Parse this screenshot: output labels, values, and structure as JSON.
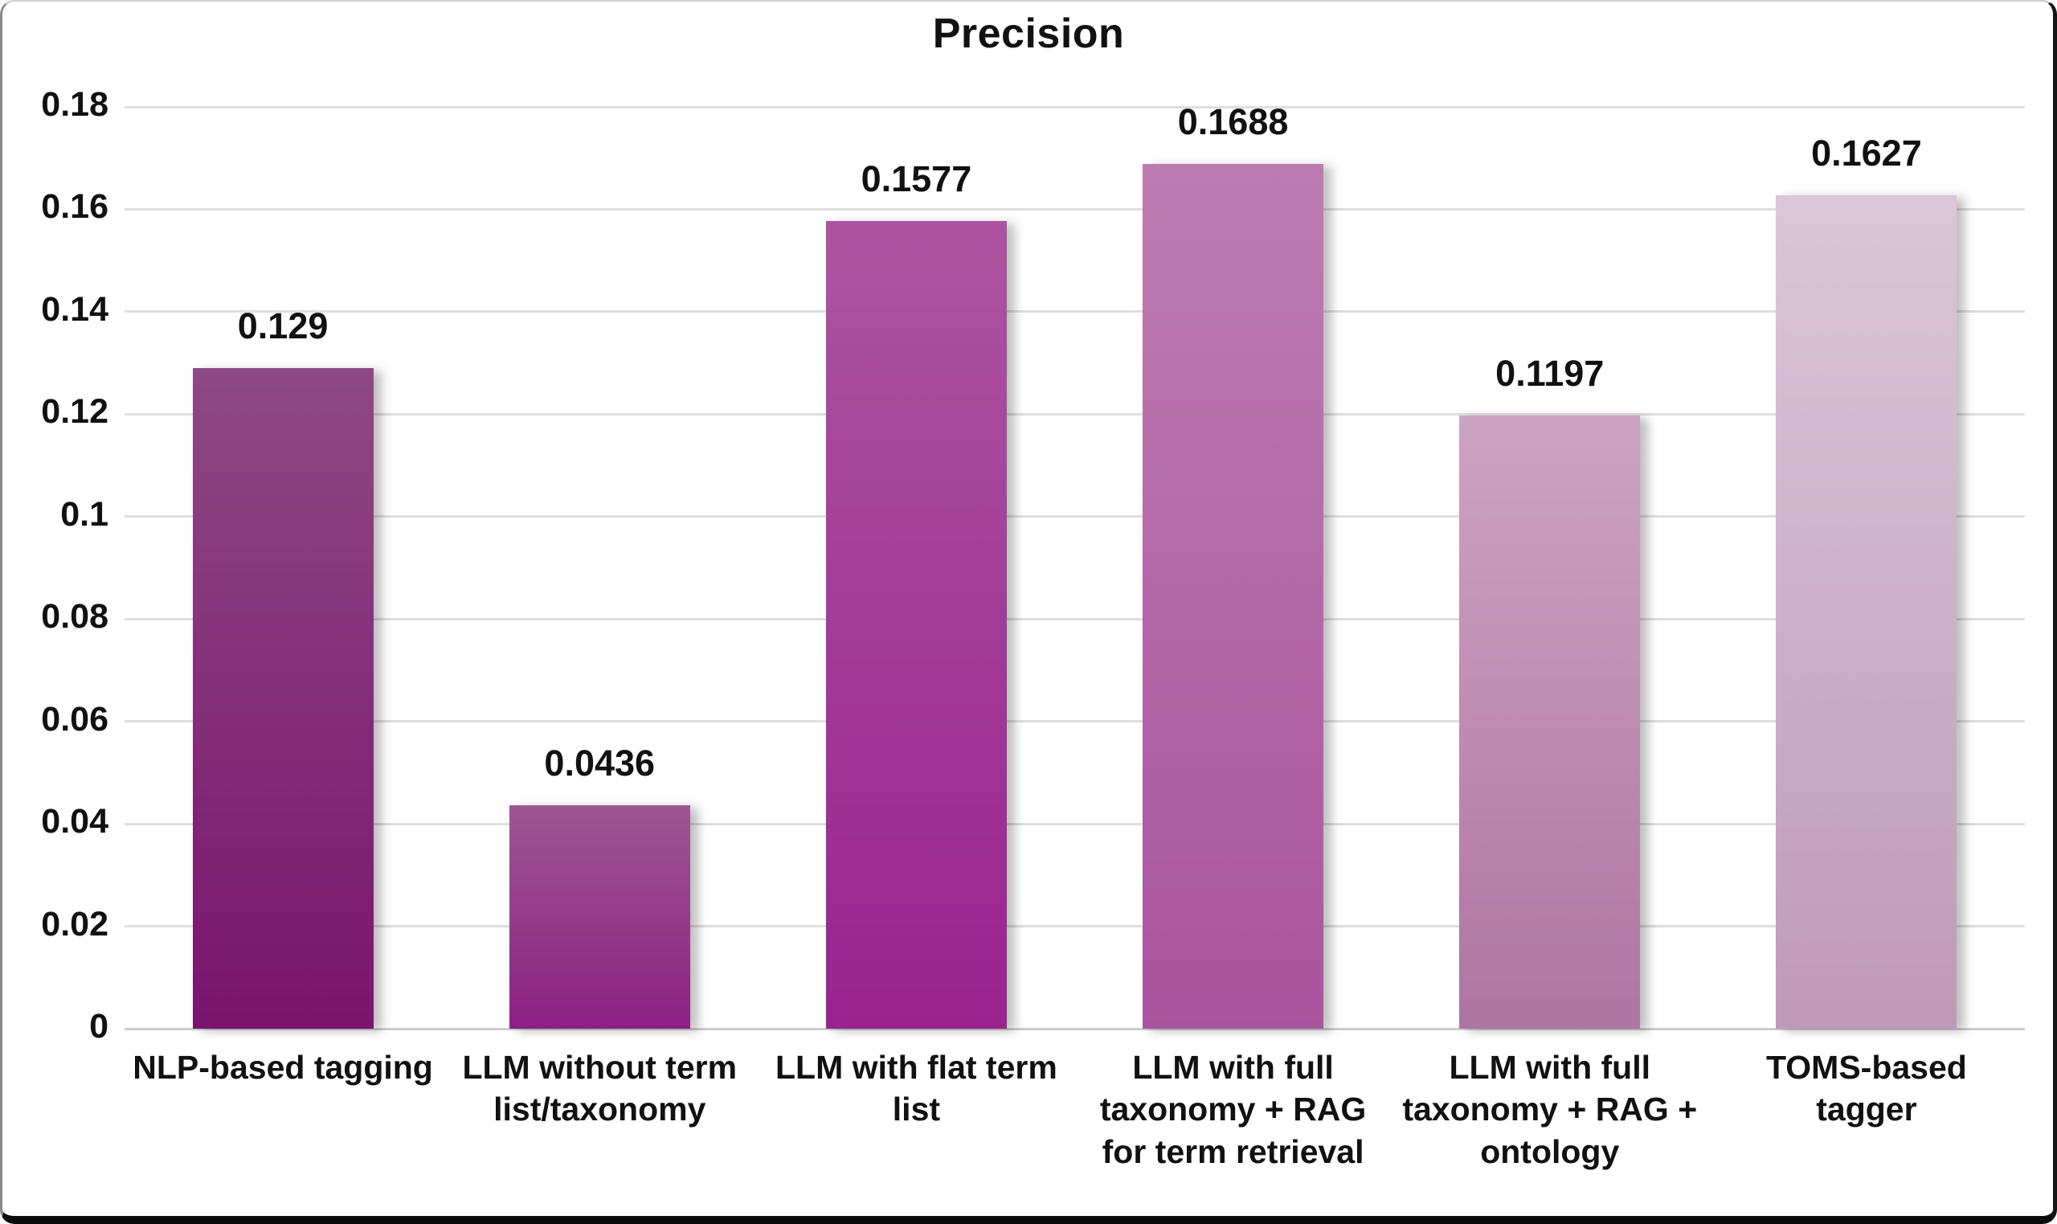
{
  "chart_data": {
    "type": "bar",
    "title": "Precision",
    "categories": [
      "NLP-based tagging",
      "LLM without term\nlist/taxonomy",
      "LLM with flat term\nlist",
      "LLM with full\ntaxonomy + RAG\nfor term retrieval",
      "LLM with full\ntaxonomy + RAG +\nontology",
      "TOMS-based\ntagger"
    ],
    "values": [
      0.129,
      0.0436,
      0.1577,
      0.1688,
      0.1197,
      0.1627
    ],
    "value_labels": [
      "0.129",
      "0.0436",
      "0.1577",
      "0.1688",
      "0.1197",
      "0.1627"
    ],
    "bar_gradients": [
      {
        "top": "#8d4983",
        "bottom": "#7a146e"
      },
      {
        "top": "#9d5692",
        "bottom": "#8d2083"
      },
      {
        "top": "#ad54a0",
        "bottom": "#992390"
      },
      {
        "top": "#bd7cb1",
        "bottom": "#a9559d"
      },
      {
        "top": "#cda3c3",
        "bottom": "#ae75a3"
      },
      {
        "top": "#dcc6d9",
        "bottom": "#bf9ab7"
      }
    ],
    "xlabel": "",
    "ylabel": "",
    "ylim": [
      0,
      0.18
    ],
    "y_ticks": [
      0,
      0.02,
      0.04,
      0.06,
      0.08,
      0.1,
      0.12,
      0.14,
      0.16,
      0.18
    ],
    "y_tick_labels": [
      "0",
      "0.02",
      "0.04",
      "0.06",
      "0.08",
      "0.1",
      "0.12",
      "0.14",
      "0.16",
      "0.18"
    ],
    "grid": true,
    "legend": false,
    "colors": {
      "gridline": "#dedede",
      "baseline": "#cccccc",
      "text": "#111111",
      "background": "#ffffff"
    }
  }
}
